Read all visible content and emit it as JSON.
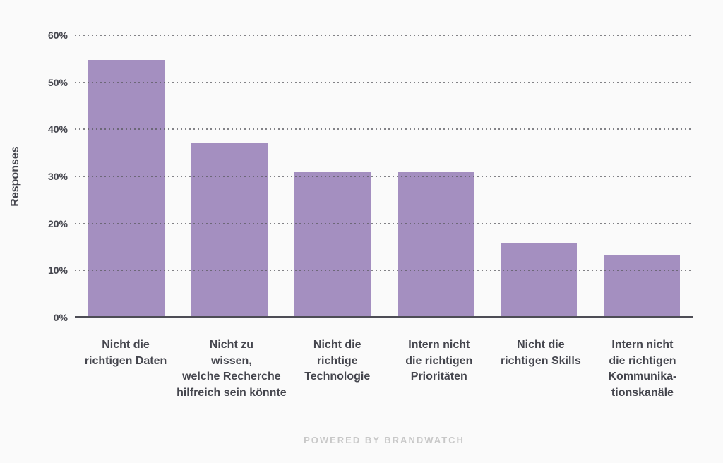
{
  "chart_data": {
    "type": "bar",
    "title": "",
    "xlabel": "",
    "ylabel": "Responses",
    "ylim": [
      0,
      60
    ],
    "y_ticks": [
      0,
      10,
      20,
      30,
      40,
      50,
      60
    ],
    "y_tick_suffix": "%",
    "grid": "dotted-horizontal",
    "legend": "none",
    "categories": [
      "Nicht die\nrichtigen Daten",
      "Nicht zu\nwissen,\nwelche Recherche\nhilfreich sein könnte",
      "Nicht die\nrichtige\nTechnologie",
      "Intern nicht\ndie richtigen\nPrioritäten",
      "Nicht die\nrichtigen Skills",
      "Intern nicht\ndie richtigen\nKommunika-\ntionskanäle"
    ],
    "values": [
      54.8,
      37.2,
      31.0,
      31.0,
      15.9,
      13.2
    ]
  },
  "footer": {
    "text": "POWERED BY BRANDWATCH"
  },
  "colors": {
    "background": "#fafafa",
    "bar": "#a48fc0",
    "axis_text": "#45464e",
    "axis_line": "#4d4d55",
    "gridline_dot": "#5a5a60",
    "footer_text": "#c8c8c8"
  }
}
